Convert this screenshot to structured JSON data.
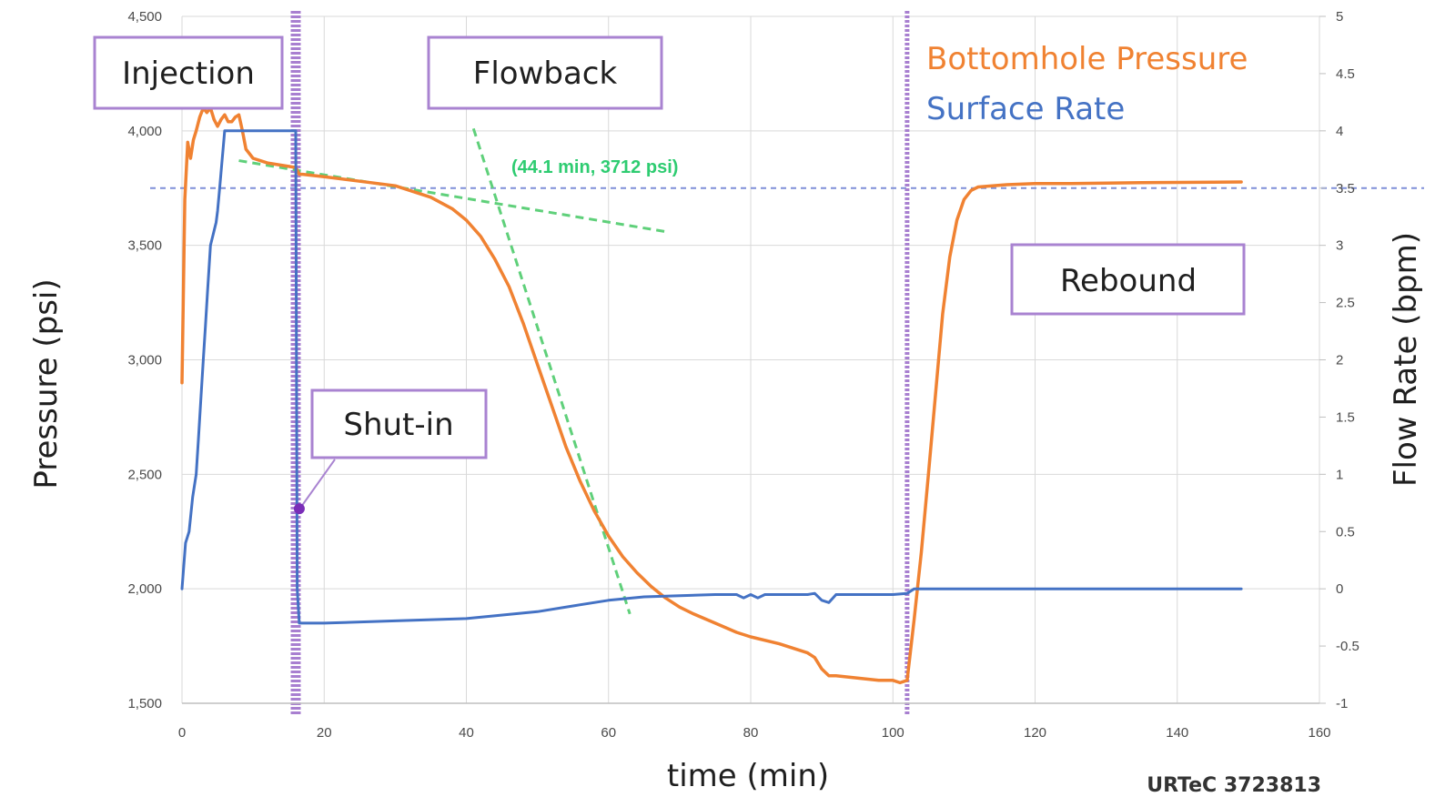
{
  "chart_data": {
    "type": "line",
    "source_label": "URTeC 3723813",
    "xlabel": "time (min)",
    "ylabel_left": "Pressure (psi)",
    "ylabel_right": "Flow Rate (bpm)",
    "xlim": [
      0,
      160
    ],
    "ylim_left": [
      1500,
      4500
    ],
    "ylim_right": [
      -1,
      5
    ],
    "grid": true,
    "legend_placement": "top-right",
    "x_ticks": [
      "0",
      "20",
      "40",
      "60",
      "80",
      "100",
      "120",
      "140",
      "160"
    ],
    "y_left_ticks": [
      "1,500",
      "2,000",
      "2,500",
      "3,000",
      "3,500",
      "4,000",
      "4,500"
    ],
    "y_right_ticks": [
      "-1",
      "-0.5",
      "0",
      "0.5",
      "1",
      "1.5",
      "2",
      "2.5",
      "3",
      "3.5",
      "4",
      "4.5",
      "5"
    ],
    "colors": {
      "pressure": "#f08232",
      "rate": "#4472c4",
      "phase_line": "#a87fd0",
      "tangent": "#5fd07a",
      "ref_line": "#7f8fd8",
      "grid": "#d9d9d9",
      "box_border": "#a983d1"
    },
    "series": [
      {
        "name": "Bottomhole Pressure",
        "axis": "left",
        "x": [
          0,
          0.4,
          0.8,
          1.2,
          1.6,
          2,
          2.5,
          3,
          3.5,
          4,
          4.5,
          5,
          5.5,
          6,
          6.5,
          7,
          7.5,
          8,
          8.5,
          9,
          10,
          12,
          14,
          16,
          16.5,
          17,
          20,
          25,
          30,
          35,
          38,
          40,
          42,
          44,
          46,
          48,
          50,
          52,
          54,
          56,
          58,
          60,
          62,
          64,
          66,
          68,
          70,
          72,
          75,
          78,
          80,
          84,
          88,
          89,
          90,
          91,
          92,
          95,
          98,
          100,
          101,
          102,
          103,
          104,
          105,
          106,
          107,
          108,
          109,
          110,
          111,
          112,
          114,
          116,
          120,
          125,
          130,
          135,
          140,
          145,
          149
        ],
        "values": [
          2900,
          3700,
          3950,
          3880,
          3960,
          4000,
          4060,
          4100,
          4080,
          4100,
          4050,
          4020,
          4050,
          4070,
          4040,
          4040,
          4060,
          4070,
          4000,
          3920,
          3880,
          3860,
          3850,
          3840,
          3810,
          3810,
          3800,
          3780,
          3760,
          3710,
          3660,
          3610,
          3540,
          3440,
          3320,
          3160,
          2980,
          2800,
          2620,
          2470,
          2340,
          2230,
          2140,
          2070,
          2010,
          1960,
          1920,
          1890,
          1850,
          1810,
          1790,
          1760,
          1720,
          1700,
          1650,
          1620,
          1620,
          1610,
          1600,
          1600,
          1590,
          1600,
          1870,
          2160,
          2500,
          2850,
          3200,
          3450,
          3610,
          3700,
          3740,
          3755,
          3760,
          3765,
          3770,
          3770,
          3772,
          3774,
          3775,
          3776,
          3777
        ]
      },
      {
        "name": "Surface Rate",
        "axis": "right",
        "x": [
          0,
          0.5,
          1,
          1.5,
          2,
          2.3,
          2.6,
          3,
          3.3,
          3.6,
          4,
          4.4,
          4.8,
          5,
          5.3,
          6,
          8,
          10,
          12,
          14,
          16,
          16.2,
          16.5,
          17,
          20,
          30,
          40,
          50,
          55,
          60,
          65,
          70,
          75,
          78,
          79,
          80,
          81,
          82,
          85,
          88,
          89,
          90,
          91,
          92,
          95,
          100,
          102,
          103,
          110,
          120,
          130,
          140,
          149
        ],
        "values": [
          0,
          0.4,
          0.5,
          0.8,
          1,
          1.3,
          1.6,
          2,
          2.3,
          2.6,
          3,
          3.1,
          3.2,
          3.3,
          3.5,
          4,
          4,
          4,
          4,
          4,
          4,
          0,
          -0.3,
          -0.3,
          -0.3,
          -0.28,
          -0.26,
          -0.2,
          -0.15,
          -0.1,
          -0.07,
          -0.06,
          -0.05,
          -0.05,
          -0.08,
          -0.05,
          -0.08,
          -0.05,
          -0.05,
          -0.05,
          -0.04,
          -0.1,
          -0.12,
          -0.05,
          -0.05,
          -0.05,
          -0.04,
          0,
          0,
          0,
          0,
          0,
          0
        ]
      }
    ],
    "phase_lines_x": [
      16,
      102
    ],
    "reference_line": {
      "y": 3750
    },
    "tangent_lines": [
      {
        "x": [
          8,
          68
        ],
        "y": [
          3870,
          3560
        ]
      },
      {
        "x": [
          41,
          63
        ],
        "y": [
          4010,
          1890
        ]
      }
    ],
    "annotations": {
      "intersection_label": "(44.1 min, 3712 psi)",
      "shut_in_marker": {
        "x": 16.5,
        "y": 2350
      }
    },
    "phase_boxes": [
      {
        "name": "injection",
        "label": "Injection"
      },
      {
        "name": "flowback",
        "label": "Flowback"
      },
      {
        "name": "shut-in",
        "label": "Shut-in"
      },
      {
        "name": "rebound",
        "label": "Rebound"
      }
    ]
  }
}
